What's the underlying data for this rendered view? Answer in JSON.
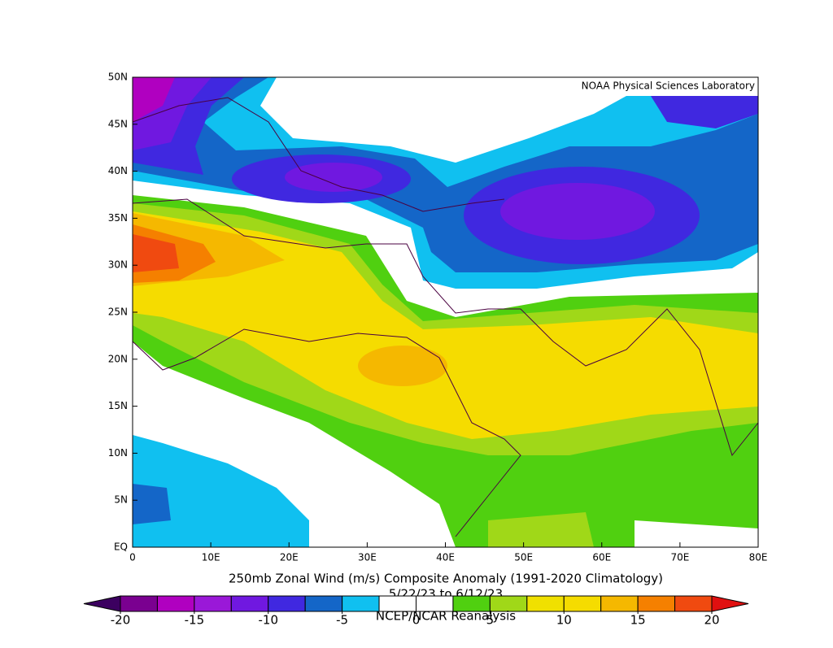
{
  "map": {
    "type": "contour-map",
    "credit": "NOAA Physical Sciences Laboratory",
    "title": "250mb Zonal Wind (m/s) Composite Anomaly (1991-2020 Climatology)",
    "dates": "5/22/23  to 6/12/23",
    "source": "NCEP/NCAR Reanalysis",
    "xlim": [
      0,
      80
    ],
    "ylim": [
      0,
      50
    ],
    "xticks": [
      0,
      {
        "value": 10,
        "label": "10E"
      },
      {
        "value": 20,
        "label": "20E"
      },
      {
        "value": 30,
        "label": "30E"
      },
      {
        "value": 40,
        "label": "40E"
      },
      {
        "value": 50,
        "label": "50E"
      },
      {
        "value": 60,
        "label": "60E"
      },
      {
        "value": 70,
        "label": "70E"
      },
      {
        "value": 80,
        "label": "80E"
      }
    ],
    "yticks": [
      {
        "value": 0,
        "label": "EQ"
      },
      {
        "value": 5,
        "label": "5N"
      },
      {
        "value": 10,
        "label": "10N"
      },
      {
        "value": 15,
        "label": "15N"
      },
      {
        "value": 20,
        "label": "20N"
      },
      {
        "value": 25,
        "label": "25N"
      },
      {
        "value": 30,
        "label": "30N"
      },
      {
        "value": 35,
        "label": "35N"
      },
      {
        "value": 40,
        "label": "40N"
      },
      {
        "value": 45,
        "label": "45N"
      },
      {
        "value": 50,
        "label": "50N"
      }
    ],
    "colorbar": {
      "clim": [
        -20,
        20
      ],
      "ticks": [
        -20,
        -15,
        -10,
        -5,
        0,
        5,
        10,
        15,
        20
      ],
      "colors": [
        "#3c0060",
        "#7a0090",
        "#b000c0",
        "#9a18d8",
        "#7018e0",
        "#4028e0",
        "#1466c8",
        "#10c0f0",
        "#ffffff",
        "#ffffff",
        "#50d010",
        "#a0d818",
        "#f0e000",
        "#f5dc00",
        "#f5b800",
        "#f58000",
        "#f04a10",
        "#e01010"
      ]
    }
  }
}
